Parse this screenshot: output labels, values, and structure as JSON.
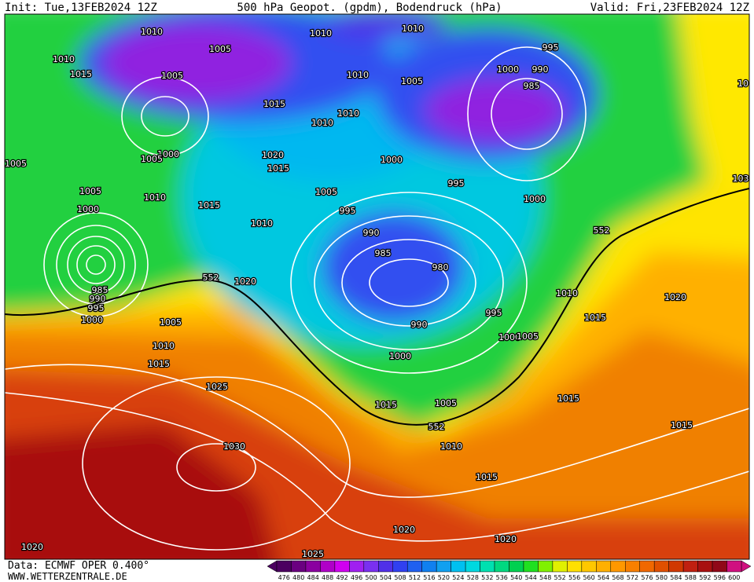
{
  "header": {
    "init": "Init: Tue,13FEB2024 12Z",
    "title": "500 hPa Geopot. (gpdm), Bodendruck (hPa)",
    "valid": "Valid: Fri,23FEB2024 12Z"
  },
  "isobar_labels": [
    1010,
    1010,
    1010,
    995,
    1010,
    1005,
    1015,
    1005,
    1010,
    1005,
    1000,
    990,
    985,
    1015,
    1010,
    1010,
    1000,
    1005,
    1005,
    1020,
    1015,
    1000,
    995,
    1005,
    1010,
    1005,
    1000,
    1000,
    1015,
    995,
    1010,
    990,
    985,
    980,
    985,
    990,
    995,
    1000,
    1020,
    1005,
    1010,
    1015,
    1025,
    990,
    995,
    1000,
    1000,
    1005,
    1010,
    1015,
    1020,
    1015,
    1005,
    1015,
    1015,
    1030,
    1010,
    1015,
    1020,
    1020,
    1020,
    1025,
    103,
    10
  ],
  "geopotential_labels": [
    552,
    552,
    552
  ],
  "colorbar": {
    "values": [
      476,
      480,
      484,
      488,
      492,
      496,
      500,
      504,
      508,
      512,
      516,
      520,
      524,
      528,
      532,
      536,
      540,
      544,
      548,
      552,
      556,
      560,
      564,
      568,
      572,
      576,
      580,
      584,
      588,
      592,
      596,
      600
    ],
    "colors": [
      "#4b0060",
      "#6a0080",
      "#8a00a0",
      "#b000c8",
      "#d000f0",
      "#a020f0",
      "#7a30f0",
      "#5030e8",
      "#3040f0",
      "#2060f0",
      "#1080f0",
      "#10a0f0",
      "#00c0f0",
      "#00d8e0",
      "#00e0b0",
      "#00d880",
      "#00d050",
      "#20e020",
      "#80f000",
      "#e0f000",
      "#ffe000",
      "#ffc800",
      "#ffb000",
      "#ff9800",
      "#f88000",
      "#f06800",
      "#e05000",
      "#d03800",
      "#c02010",
      "#a81010",
      "#900818",
      "#d01080"
    ]
  },
  "footer": {
    "source": "Data: ECMWF OPER 0.400°",
    "site": "WWW.WETTERZENTRALE.DE"
  }
}
